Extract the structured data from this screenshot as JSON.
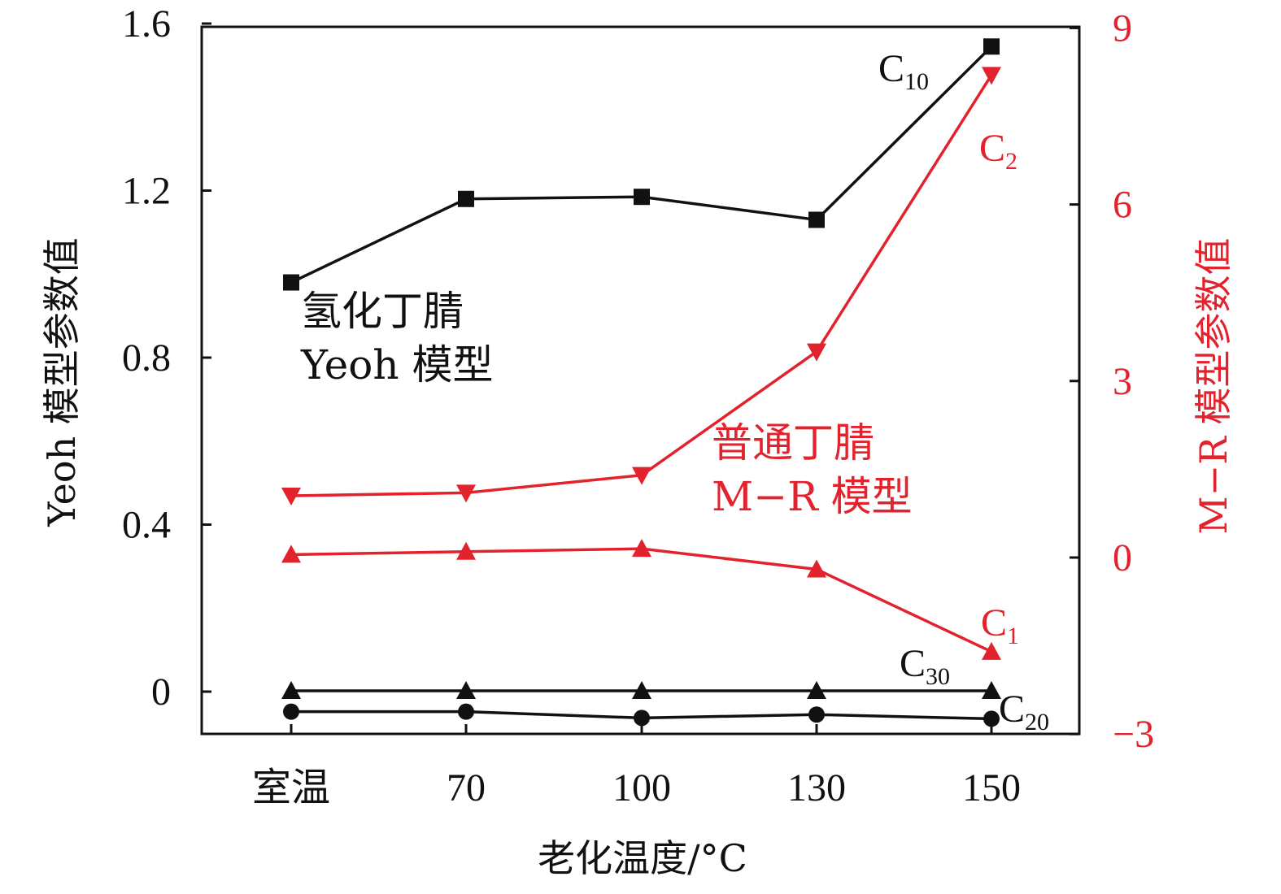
{
  "chart_data": {
    "type": "line",
    "categories": [
      "室温",
      "70",
      "100",
      "130",
      "150"
    ],
    "xlabel": "老化温度/°C",
    "ylabel_left": "Yeoh 模型参数值",
    "ylabel_right": "M−R 模型参数值",
    "ylim_left": [
      -0.1,
      1.6
    ],
    "ylim_right": [
      -3,
      9
    ],
    "yticks_left": [
      0,
      0.4,
      0.8,
      1.2,
      1.6
    ],
    "yticks_left_labels": [
      "0",
      "0.4",
      "0.8",
      "1.2",
      "1.6"
    ],
    "yticks_right": [
      -3,
      0,
      3,
      6,
      9
    ],
    "yticks_right_labels": [
      "−3",
      "0",
      "3",
      "6",
      "9"
    ],
    "annotations": [
      {
        "lines": [
          "氢化丁腈",
          "Yeoh 模型"
        ],
        "color": "#111111"
      },
      {
        "lines": [
          "普通丁腈",
          "M−R 模型"
        ],
        "color": "#e2222c"
      }
    ],
    "series": [
      {
        "name": "C",
        "sub": "10",
        "axis": "left",
        "marker": "square",
        "color": "#111111",
        "values": [
          0.98,
          1.18,
          1.185,
          1.13,
          1.545
        ]
      },
      {
        "name": "C",
        "sub": "20",
        "axis": "left",
        "marker": "circle",
        "color": "#111111",
        "values": [
          -0.048,
          -0.048,
          -0.063,
          -0.055,
          -0.065
        ]
      },
      {
        "name": "C",
        "sub": "30",
        "axis": "left",
        "marker": "triangle-up",
        "color": "#111111",
        "values": [
          0.002,
          0.002,
          0.002,
          0.002,
          0.002
        ]
      },
      {
        "name": "C",
        "sub": "1",
        "axis": "right",
        "marker": "triangle-up",
        "color": "#e2222c",
        "values": [
          0.05,
          0.1,
          0.15,
          -0.2,
          -1.6
        ]
      },
      {
        "name": "C",
        "sub": "2",
        "axis": "right",
        "marker": "triangle-down",
        "color": "#e2222c",
        "values": [
          1.05,
          1.1,
          1.4,
          3.5,
          8.2
        ]
      }
    ]
  }
}
